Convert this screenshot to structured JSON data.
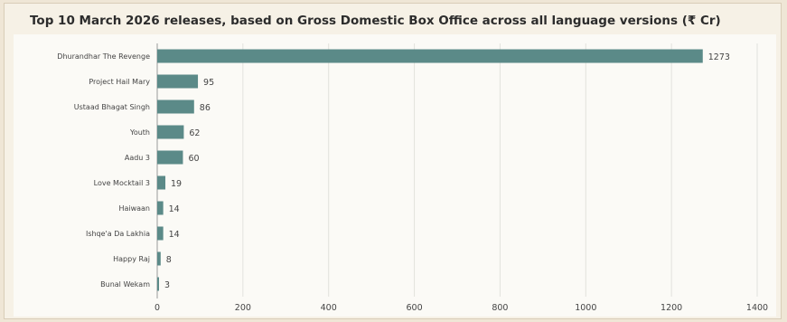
{
  "chart_data": {
    "type": "bar",
    "orientation": "horizontal",
    "title": "Top 10 March 2026 releases, based on Gross Domestic Box Office across all language versions (₹ Cr)",
    "categories": [
      "Dhurandhar The Revenge",
      "Project Hail Mary",
      "Ustaad Bhagat Singh",
      "Youth",
      "Aadu 3",
      "Love Mocktail 3",
      "Haiwaan",
      "Ishqe'a Da Lakhia",
      "Happy Raj",
      "Bunal Wekam"
    ],
    "values": [
      1273,
      95,
      86,
      62,
      60,
      19,
      14,
      14,
      8,
      3
    ],
    "xlim": [
      0,
      1400
    ],
    "xticks": [
      0,
      200,
      400,
      600,
      800,
      1000,
      1200,
      1400
    ],
    "xlabel": "",
    "ylabel": "",
    "grid": "vertical",
    "bar_color": "#5b8a88"
  }
}
